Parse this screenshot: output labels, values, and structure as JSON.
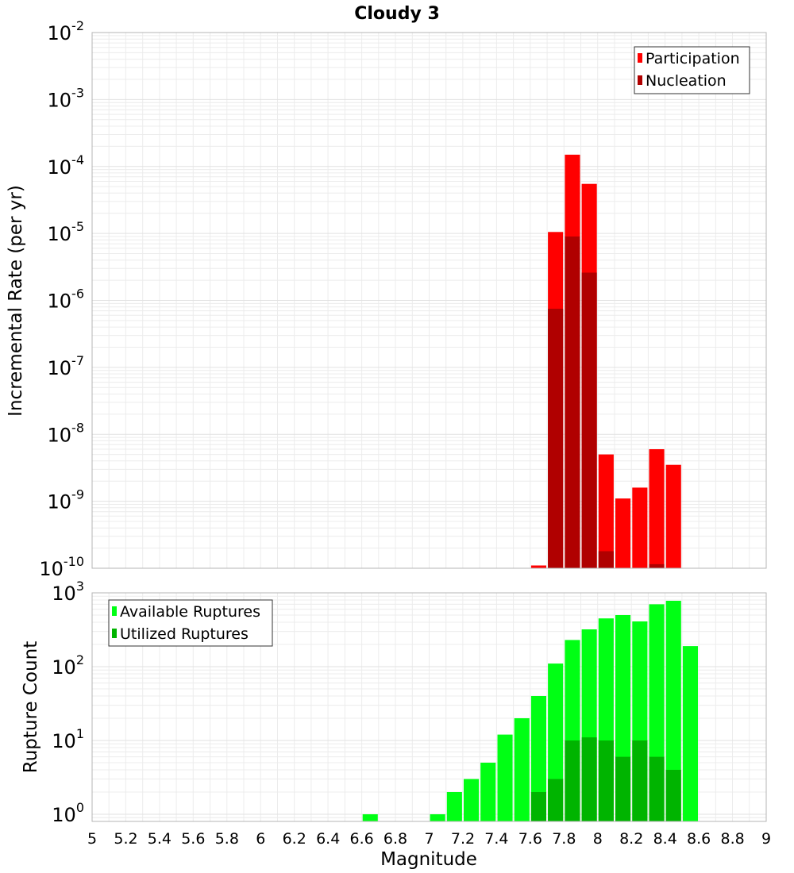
{
  "title": "Cloudy 3",
  "x_axis": {
    "label": "Magnitude",
    "range": [
      5,
      9
    ],
    "ticks": [
      "5",
      "5.2",
      "5.4",
      "5.6",
      "5.8",
      "6",
      "6.2",
      "6.4",
      "6.6",
      "6.8",
      "7",
      "7.2",
      "7.4",
      "7.6",
      "7.8",
      "8",
      "8.2",
      "8.4",
      "8.6",
      "8.8",
      "9"
    ]
  },
  "colors": {
    "participation": "#ff0000",
    "nucleation": "#b00000",
    "available": "#00ff14",
    "utilized": "#00b400",
    "grid": "#ececec",
    "frame": "#b4b4b4"
  },
  "chart_data": [
    {
      "type": "bar",
      "ylabel": "Incremental Rate (per yr)",
      "yscale": "log",
      "ylim": [
        1e-10,
        0.01
      ],
      "yticks": [
        {
          "base": "10",
          "exp": "-10"
        },
        {
          "base": "10",
          "exp": "-9"
        },
        {
          "base": "10",
          "exp": "-8"
        },
        {
          "base": "10",
          "exp": "-7"
        },
        {
          "base": "10",
          "exp": "-6"
        },
        {
          "base": "10",
          "exp": "-5"
        },
        {
          "base": "10",
          "exp": "-4"
        },
        {
          "base": "10",
          "exp": "-3"
        },
        {
          "base": "10",
          "exp": "-2"
        }
      ],
      "legend": {
        "position": "top-right",
        "items": [
          "Participation",
          "Nucleation"
        ]
      },
      "bar_width": 0.09,
      "series": [
        {
          "name": "Participation",
          "x": [
            7.65,
            7.75,
            7.85,
            7.95,
            8.05,
            8.15,
            8.25,
            8.35,
            8.45
          ],
          "values": [
            1.1e-10,
            1.05e-05,
            0.00015,
            5.5e-05,
            5e-09,
            1.1e-09,
            1.6e-09,
            6e-09,
            3.5e-09
          ]
        },
        {
          "name": "Nucleation",
          "x": [
            7.75,
            7.85,
            7.95,
            8.05,
            8.35
          ],
          "values": [
            7.5e-07,
            9e-06,
            2.6e-06,
            1.8e-10,
            1.15e-10
          ]
        }
      ]
    },
    {
      "type": "bar",
      "ylabel": "Rupture Count",
      "yscale": "log",
      "ylim": [
        0.8,
        1000
      ],
      "yticks": [
        {
          "base": "10",
          "exp": "0"
        },
        {
          "base": "10",
          "exp": "1"
        },
        {
          "base": "10",
          "exp": "2"
        },
        {
          "base": "10",
          "exp": "3"
        }
      ],
      "legend": {
        "position": "top-left",
        "items": [
          "Available Ruptures",
          "Utilized Ruptures"
        ]
      },
      "bar_width": 0.09,
      "series": [
        {
          "name": "Available Ruptures",
          "x": [
            6.65,
            7.05,
            7.15,
            7.25,
            7.35,
            7.45,
            7.55,
            7.65,
            7.75,
            7.85,
            7.95,
            8.05,
            8.15,
            8.25,
            8.35,
            8.45,
            8.55
          ],
          "values": [
            1,
            1,
            2,
            3,
            5,
            12,
            20,
            40,
            110,
            230,
            320,
            450,
            500,
            410,
            700,
            780,
            190
          ]
        },
        {
          "name": "Utilized Ruptures",
          "x": [
            7.65,
            7.75,
            7.85,
            7.95,
            8.05,
            8.15,
            8.25,
            8.35,
            8.45
          ],
          "values": [
            2,
            3,
            10,
            11,
            10,
            6,
            10,
            6,
            4
          ]
        }
      ]
    }
  ]
}
